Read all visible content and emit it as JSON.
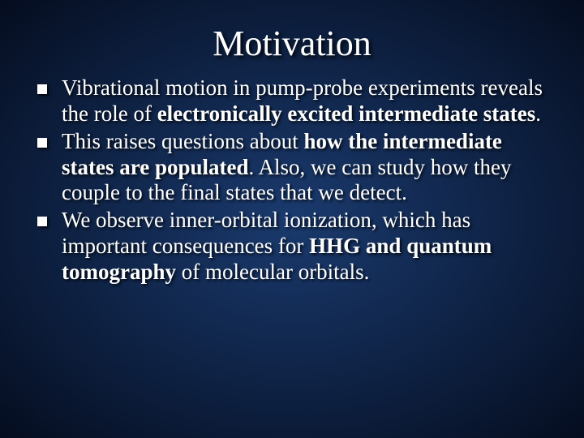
{
  "background": {
    "gradient_center": "#1a3a6e",
    "gradient_mid": "#0d1f3f",
    "gradient_edge": "#050d1f"
  },
  "title": {
    "text": "Motivation",
    "fontsize": 44,
    "color": "#ffffff"
  },
  "bullets": {
    "bullet_marker": "square",
    "bullet_color": "#ffffff",
    "text_color": "#ffffff",
    "fontsize": 27,
    "items": [
      {
        "pre": "Vibrational motion in pump-probe experiments reveals the role of ",
        "bold1": "electronically excited intermediate states",
        "post": "."
      },
      {
        "pre": "This raises questions about ",
        "bold1": "how the intermediate states are populated",
        "post": ".  Also, we can study how they couple to the final states that we detect."
      },
      {
        "pre": "We observe inner-orbital ionization, which has important consequences for ",
        "bold1": "HHG and quantum tomography",
        "post": " of molecular orbitals."
      }
    ]
  }
}
